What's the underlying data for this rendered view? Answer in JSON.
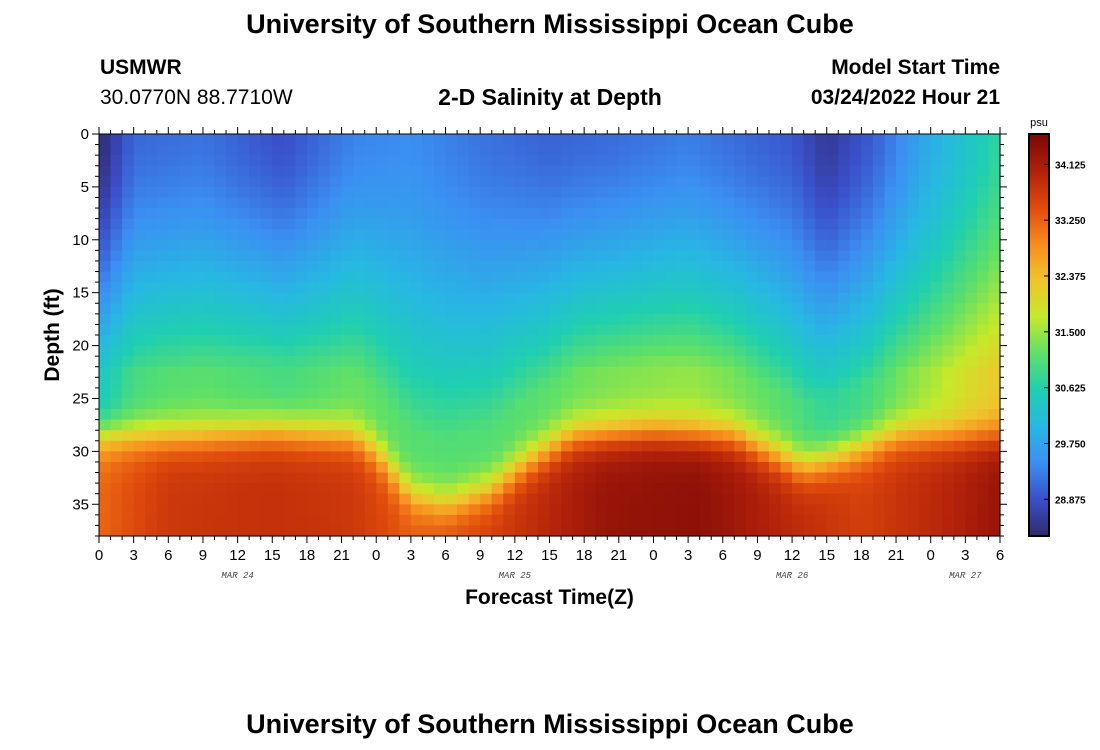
{
  "header": {
    "title": "University of Southern Mississippi Ocean Cube",
    "station": "USMWR",
    "coords": "30.0770N  88.7710W",
    "subtitle": "2-D Salinity at Depth",
    "model_start_label": "Model Start Time",
    "model_start_value": "03/24/2022 Hour 21"
  },
  "footer": {
    "title": "University of Southern Mississippi Ocean Cube"
  },
  "colors": {
    "colormap": [
      "#302a6b",
      "#3a4fc9",
      "#3b8ff2",
      "#27b8e2",
      "#1fcfb1",
      "#5fe067",
      "#c6e92a",
      "#f0c42c",
      "#f78b1d",
      "#df4a0c",
      "#b1200a",
      "#7a0806"
    ]
  },
  "chart_data": {
    "type": "heatmap",
    "xlabel": "Forecast Time(Z)",
    "ylabel": "Depth (ft)",
    "colorbar_unit": "psu",
    "xlim": [
      0,
      78
    ],
    "ylim": [
      38,
      0
    ],
    "y_reversed": true,
    "colorbar_range": [
      28.3,
      34.6
    ],
    "colorbar_ticks": [
      "34.125",
      "33.250",
      "32.375",
      "31.500",
      "30.625",
      "29.750",
      "28.875"
    ],
    "x_ticks": [
      {
        "hour": 0,
        "label": "0"
      },
      {
        "hour": 3,
        "label": "3"
      },
      {
        "hour": 6,
        "label": "6"
      },
      {
        "hour": 9,
        "label": "9"
      },
      {
        "hour": 12,
        "label": "12"
      },
      {
        "hour": 15,
        "label": "15"
      },
      {
        "hour": 18,
        "label": "18"
      },
      {
        "hour": 21,
        "label": "21"
      },
      {
        "hour": 24,
        "label": "0"
      },
      {
        "hour": 27,
        "label": "3"
      },
      {
        "hour": 30,
        "label": "6"
      },
      {
        "hour": 33,
        "label": "9"
      },
      {
        "hour": 36,
        "label": "12"
      },
      {
        "hour": 39,
        "label": "15"
      },
      {
        "hour": 42,
        "label": "18"
      },
      {
        "hour": 45,
        "label": "21"
      },
      {
        "hour": 48,
        "label": "0"
      },
      {
        "hour": 51,
        "label": "3"
      },
      {
        "hour": 54,
        "label": "6"
      },
      {
        "hour": 57,
        "label": "9"
      },
      {
        "hour": 60,
        "label": "12"
      },
      {
        "hour": 63,
        "label": "15"
      },
      {
        "hour": 66,
        "label": "18"
      },
      {
        "hour": 69,
        "label": "21"
      },
      {
        "hour": 72,
        "label": "0"
      },
      {
        "hour": 75,
        "label": "3"
      },
      {
        "hour": 78,
        "label": "6"
      }
    ],
    "date_labels": [
      {
        "hour": 12,
        "label": "MAR 24"
      },
      {
        "hour": 36,
        "label": "MAR 25"
      },
      {
        "hour": 60,
        "label": "MAR 26"
      },
      {
        "hour": 75,
        "label": "MAR 27"
      }
    ],
    "y_ticks": [
      0,
      5,
      10,
      15,
      20,
      25,
      30,
      35
    ],
    "surface_salinity": [
      {
        "hour": 0,
        "value": 28.3
      },
      {
        "hour": 3,
        "value": 29.1
      },
      {
        "hour": 9,
        "value": 29.2
      },
      {
        "hour": 16,
        "value": 28.85
      },
      {
        "hour": 22,
        "value": 29.35
      },
      {
        "hour": 27,
        "value": 29.45
      },
      {
        "hour": 33,
        "value": 29.2
      },
      {
        "hour": 39,
        "value": 29.05
      },
      {
        "hour": 45,
        "value": 29.15
      },
      {
        "hour": 51,
        "value": 29.3
      },
      {
        "hour": 56,
        "value": 29.1
      },
      {
        "hour": 60,
        "value": 28.95
      },
      {
        "hour": 63,
        "value": 28.55
      },
      {
        "hour": 67,
        "value": 29.0
      },
      {
        "hour": 71,
        "value": 29.7
      },
      {
        "hour": 75,
        "value": 30.3
      },
      {
        "hour": 78,
        "value": 30.75
      }
    ],
    "halocline_depth_ft": [
      {
        "hour": 0,
        "value": 28.5
      },
      {
        "hour": 8,
        "value": 28.5
      },
      {
        "hour": 15,
        "value": 28.0
      },
      {
        "hour": 22,
        "value": 28.5
      },
      {
        "hour": 24,
        "value": 30.0
      },
      {
        "hour": 27,
        "value": 34.0
      },
      {
        "hour": 30,
        "value": 35.0
      },
      {
        "hour": 34,
        "value": 33.5
      },
      {
        "hour": 37,
        "value": 31.0
      },
      {
        "hour": 41,
        "value": 28.5
      },
      {
        "hour": 48,
        "value": 28.0
      },
      {
        "hour": 55,
        "value": 28.5
      },
      {
        "hour": 58,
        "value": 30.0
      },
      {
        "hour": 61,
        "value": 31.5
      },
      {
        "hour": 64,
        "value": 30.5
      },
      {
        "hour": 69,
        "value": 28.5
      },
      {
        "hour": 75,
        "value": 28.5
      },
      {
        "hour": 78,
        "value": 28.5
      }
    ],
    "bottom_salinity": [
      {
        "hour": 0,
        "value": 33.2
      },
      {
        "hour": 6,
        "value": 33.7
      },
      {
        "hour": 15,
        "value": 33.8
      },
      {
        "hour": 22,
        "value": 33.7
      },
      {
        "hour": 27,
        "value": 33.3
      },
      {
        "hour": 34,
        "value": 33.6
      },
      {
        "hour": 44,
        "value": 34.3
      },
      {
        "hour": 52,
        "value": 34.4
      },
      {
        "hour": 60,
        "value": 33.9
      },
      {
        "hour": 66,
        "value": 33.6
      },
      {
        "hour": 74,
        "value": 34.0
      },
      {
        "hour": 78,
        "value": 34.3
      }
    ]
  }
}
